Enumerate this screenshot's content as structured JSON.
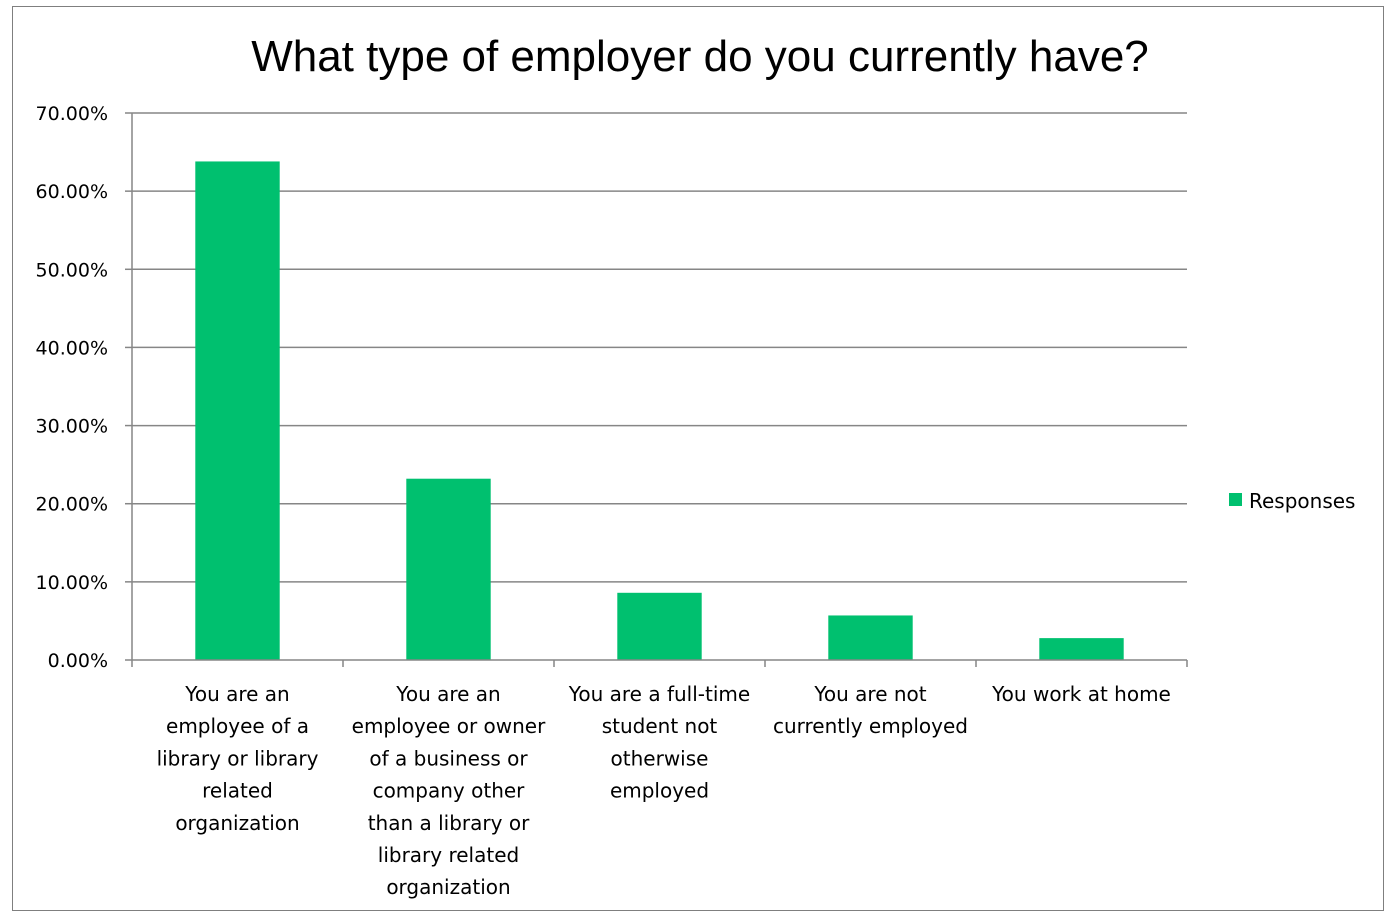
{
  "chart_data": {
    "type": "bar",
    "title": "What type of employer do you currently have?",
    "xlabel": "",
    "ylabel": "",
    "ylim": [
      0,
      0.7
    ],
    "yticks": [
      0,
      0.1,
      0.2,
      0.3,
      0.4,
      0.5,
      0.6,
      0.7
    ],
    "ytick_labels": [
      "0.00%",
      "10.00%",
      "20.00%",
      "30.00%",
      "40.00%",
      "50.00%",
      "60.00%",
      "70.00%"
    ],
    "grid": true,
    "legend_position": "right",
    "categories": [
      "You are an employee of a library or library related organization",
      "You are an employee or owner of a business or company other than a library or library related organization",
      "You are a full-time student not otherwise employed",
      "You are not currently employed",
      "You work at home"
    ],
    "category_lines": [
      [
        "You are an",
        "employee of a",
        "library or library",
        "related",
        "organization"
      ],
      [
        "You are an",
        "employee or owner",
        "of a business or",
        "company other",
        "than a library or",
        "library related",
        "organization"
      ],
      [
        "You are a full-time",
        "student not",
        "otherwise",
        "employed"
      ],
      [
        "You are not",
        "currently employed"
      ],
      [
        "You work at home"
      ]
    ],
    "series": [
      {
        "name": "Responses",
        "color": "#00c06f",
        "values": [
          0.638,
          0.232,
          0.086,
          0.057,
          0.028
        ]
      }
    ]
  }
}
